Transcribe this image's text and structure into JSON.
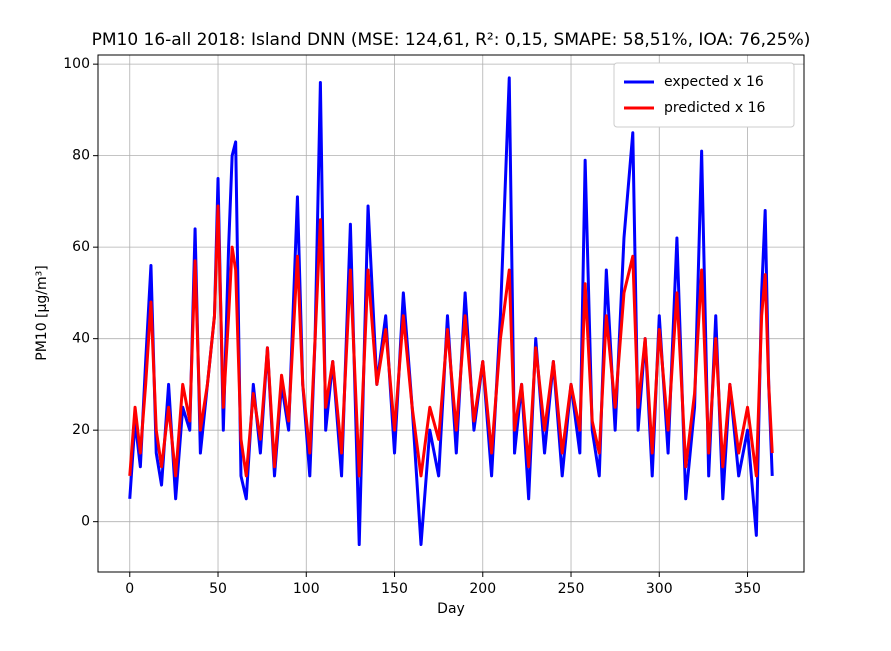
{
  "chart_data": {
    "type": "line",
    "title": "PM10 16-all 2018: Island DNN (MSE: 124,61, R²: 0,15, SMAPE: 58,51%, IOA: 76,25%)",
    "xlabel": "Day",
    "ylabel": "PM10 [μg/m³]",
    "x": [
      0,
      3,
      6,
      9,
      12,
      15,
      18,
      22,
      26,
      30,
      34,
      37,
      40,
      44,
      48,
      50,
      53,
      56,
      58,
      60,
      63,
      66,
      70,
      74,
      78,
      82,
      86,
      90,
      95,
      98,
      102,
      105,
      108,
      111,
      115,
      120,
      125,
      130,
      135,
      140,
      145,
      150,
      155,
      160,
      165,
      170,
      175,
      180,
      185,
      190,
      195,
      200,
      205,
      210,
      215,
      218,
      222,
      226,
      230,
      235,
      240,
      245,
      250,
      255,
      258,
      262,
      266,
      270,
      275,
      280,
      285,
      288,
      292,
      296,
      300,
      305,
      310,
      315,
      320,
      324,
      328,
      332,
      336,
      340,
      345,
      350,
      355,
      358,
      360,
      362,
      364
    ],
    "series": [
      {
        "name": "expected x 16",
        "color": "#0000ff",
        "values": [
          5,
          22,
          12,
          35,
          56,
          15,
          8,
          30,
          5,
          25,
          20,
          64,
          15,
          30,
          45,
          75,
          20,
          60,
          80,
          83,
          10,
          5,
          30,
          15,
          38,
          10,
          30,
          20,
          71,
          30,
          10,
          40,
          96,
          20,
          35,
          10,
          65,
          -5,
          69,
          30,
          45,
          15,
          50,
          25,
          -5,
          20,
          10,
          45,
          15,
          50,
          20,
          35,
          10,
          45,
          97,
          15,
          30,
          5,
          40,
          15,
          35,
          10,
          30,
          15,
          79,
          20,
          10,
          55,
          20,
          62,
          85,
          20,
          40,
          10,
          45,
          15,
          62,
          5,
          25,
          81,
          10,
          45,
          5,
          30,
          10,
          20,
          -3,
          50,
          68,
          30,
          10
        ]
      },
      {
        "name": "predicted x 16",
        "color": "#ff0000",
        "values": [
          10,
          25,
          15,
          30,
          48,
          20,
          12,
          25,
          10,
          30,
          22,
          57,
          20,
          30,
          45,
          69,
          25,
          45,
          60,
          55,
          18,
          10,
          28,
          18,
          38,
          12,
          32,
          22,
          58,
          30,
          15,
          40,
          66,
          25,
          35,
          15,
          55,
          10,
          55,
          30,
          42,
          20,
          45,
          25,
          10,
          25,
          18,
          42,
          20,
          45,
          22,
          35,
          15,
          40,
          55,
          20,
          30,
          12,
          38,
          20,
          35,
          15,
          30,
          20,
          52,
          22,
          15,
          45,
          25,
          50,
          58,
          25,
          40,
          15,
          42,
          20,
          50,
          12,
          28,
          55,
          15,
          40,
          12,
          30,
          15,
          25,
          10,
          45,
          54,
          30,
          15
        ]
      }
    ],
    "xlim": [
      -18,
      382
    ],
    "ylim": [
      -11,
      102
    ],
    "xticks": [
      0,
      50,
      100,
      150,
      200,
      250,
      300,
      350
    ],
    "yticks": [
      0,
      20,
      40,
      60,
      80,
      100
    ],
    "grid": true,
    "legend": "upper right"
  }
}
